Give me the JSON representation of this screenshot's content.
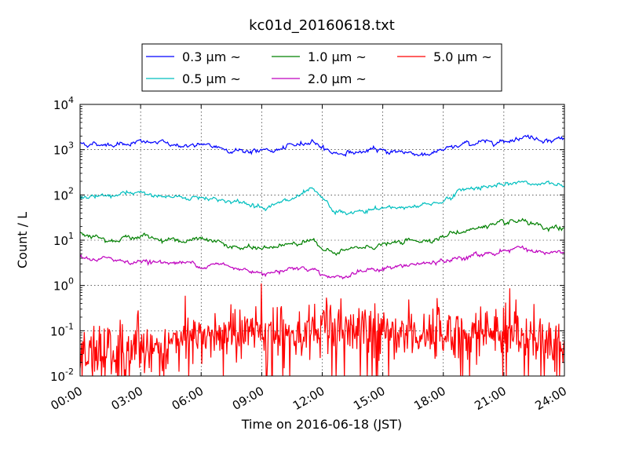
{
  "chart_data": {
    "type": "line",
    "title": "kc01d_20160618.txt",
    "xlabel": "Time on 2016-06-18 (JST)",
    "ylabel": "Count / L",
    "y_scale": "log",
    "ylim": [
      0.01,
      10000
    ],
    "x_unit": "hour",
    "xlim": [
      0,
      24
    ],
    "x_ticks": [
      {
        "value": 0,
        "label": "00:00"
      },
      {
        "value": 3,
        "label": "03:00"
      },
      {
        "value": 6,
        "label": "06:00"
      },
      {
        "value": 9,
        "label": "09:00"
      },
      {
        "value": 12,
        "label": "12:00"
      },
      {
        "value": 15,
        "label": "15:00"
      },
      {
        "value": 18,
        "label": "18:00"
      },
      {
        "value": 21,
        "label": "21:00"
      },
      {
        "value": 24,
        "label": "24:00"
      }
    ],
    "y_ticks": [
      {
        "value": 0.01,
        "base": "10",
        "exp": "-2"
      },
      {
        "value": 0.1,
        "base": "10",
        "exp": "-1"
      },
      {
        "value": 1,
        "base": "10",
        "exp": "0"
      },
      {
        "value": 10,
        "base": "10",
        "exp": "1"
      },
      {
        "value": 100,
        "base": "10",
        "exp": "2"
      },
      {
        "value": 1000,
        "base": "10",
        "exp": "3"
      },
      {
        "value": 10000,
        "base": "10",
        "exp": "4"
      }
    ],
    "grid": true,
    "legend_position": "top-center",
    "series": [
      {
        "name": "0.3 μm ~",
        "color": "#0000ff",
        "x": [
          0,
          1,
          2,
          3,
          4,
          5,
          6,
          7,
          8,
          9,
          10,
          11,
          11.5,
          12,
          12.5,
          13,
          14,
          15,
          16,
          17,
          18,
          19,
          20,
          21,
          22,
          23,
          24
        ],
        "y": [
          1400,
          1300,
          1400,
          1450,
          1400,
          1250,
          1200,
          1100,
          950,
          920,
          1000,
          1350,
          1600,
          1200,
          850,
          850,
          900,
          950,
          900,
          800,
          950,
          1300,
          1500,
          1600,
          2000,
          1700,
          1750
        ]
      },
      {
        "name": "0.5 μm ~",
        "color": "#00bfbf",
        "x": [
          0,
          1,
          2,
          3,
          4,
          5,
          6,
          7,
          8,
          9,
          10,
          11,
          11.5,
          12,
          12.5,
          13,
          14,
          15,
          16,
          17,
          18,
          19,
          20,
          21,
          22,
          23,
          24
        ],
        "y": [
          95,
          85,
          100,
          105,
          95,
          88,
          90,
          80,
          65,
          58,
          65,
          95,
          120,
          80,
          45,
          38,
          42,
          50,
          55,
          60,
          75,
          130,
          160,
          155,
          200,
          170,
          165
        ]
      },
      {
        "name": "1.0 μm ~",
        "color": "#008000",
        "x": [
          0,
          1,
          2,
          3,
          4,
          5,
          6,
          7,
          8,
          9,
          10,
          11,
          11.5,
          12,
          12.5,
          13,
          14,
          15,
          16,
          17,
          18,
          19,
          20,
          21,
          22,
          23,
          24
        ],
        "y": [
          15,
          12,
          11,
          12,
          11,
          10,
          10,
          8.5,
          6.5,
          6.5,
          7.5,
          10,
          11,
          6,
          5,
          5.5,
          7,
          8,
          9,
          10,
          12,
          16,
          20,
          22,
          25,
          17,
          18
        ]
      },
      {
        "name": "2.0 μm ~",
        "color": "#bf00bf",
        "x": [
          0,
          1,
          2,
          3,
          4,
          5,
          6,
          7,
          8,
          9,
          10,
          11,
          11.5,
          12,
          12.5,
          13,
          14,
          15,
          16,
          17,
          18,
          19,
          20,
          21,
          22,
          23,
          24
        ],
        "y": [
          4,
          3.8,
          3.6,
          3.4,
          3.3,
          3.1,
          3,
          2.8,
          2.2,
          2,
          2.2,
          2.6,
          2.4,
          1.8,
          1.6,
          1.6,
          2,
          2.4,
          2.6,
          3,
          3.3,
          4,
          5,
          6,
          7,
          5.2,
          5
        ]
      },
      {
        "name": "5.0 μm ~",
        "color": "#ff0000",
        "noisy": true,
        "x": [
          0,
          1,
          2,
          3,
          4,
          5,
          6,
          7,
          8,
          9,
          10,
          11,
          12,
          13,
          14,
          15,
          16,
          17,
          18,
          19,
          20,
          21,
          22,
          23,
          24
        ],
        "y": [
          0.03,
          0.03,
          0.035,
          0.04,
          0.045,
          0.055,
          0.075,
          0.085,
          0.09,
          0.09,
          0.09,
          0.095,
          0.1,
          0.1,
          0.1,
          0.1,
          0.095,
          0.09,
          0.085,
          0.09,
          0.1,
          0.1,
          0.08,
          0.06,
          0.04
        ]
      }
    ]
  }
}
